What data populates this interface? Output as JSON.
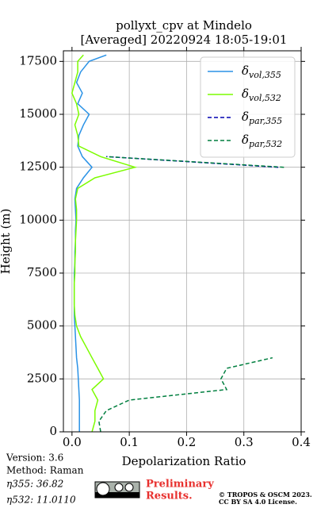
{
  "chart_data": {
    "type": "line",
    "title": [
      "pollyxt_cpv at Mindelo",
      "[Averaged] 20220924 18:05-19:01"
    ],
    "xlabel": "Depolarization Ratio",
    "ylabel": "Height (m)",
    "y": [
      0,
      500,
      1000,
      1500,
      2000,
      2500,
      3000,
      3500,
      4000,
      4500,
      5000,
      5500,
      6000,
      6500,
      7000,
      7500,
      8000,
      8500,
      9000,
      9500,
      10000,
      10500,
      11000,
      11500,
      12000,
      12500,
      13000,
      13500,
      14000,
      14500,
      15000,
      15500,
      16000,
      16500,
      17000,
      17500,
      17800
    ],
    "xlim": [
      -0.015,
      0.4
    ],
    "ylim": [
      0,
      18000
    ],
    "xticks": [
      {
        "value": 0,
        "label": "0.0"
      },
      0.1,
      0.2,
      0.3,
      0.4
    ],
    "yticks": [
      0,
      2500,
      5000,
      7500,
      10000,
      12500,
      15000,
      17500
    ],
    "grid": true,
    "legend": "upper right",
    "series": [
      {
        "name": {
          "symbol": "δ",
          "subscript": "vol,355"
        },
        "color": "#2a92e6",
        "dash": "solid",
        "values": [
          0.013,
          0.013,
          0.013,
          0.013,
          0.012,
          0.011,
          0.01,
          0.008,
          0.007,
          0.006,
          0.005,
          0.004,
          0.004,
          0.004,
          0.004,
          0.004,
          0.005,
          0.005,
          0.006,
          0.006,
          0.007,
          0.006,
          0.005,
          0.008,
          0.02,
          0.035,
          0.018,
          0.01,
          0.012,
          0.02,
          0.03,
          0.01,
          0.018,
          0.008,
          0.015,
          0.03,
          0.06
        ]
      },
      {
        "name": {
          "symbol": "δ",
          "subscript": "vol,532"
        },
        "color": "#7cfc00",
        "dash": "solid",
        "values": [
          0.035,
          0.04,
          0.04,
          0.045,
          0.035,
          0.055,
          0.045,
          0.035,
          0.025,
          0.015,
          0.008,
          0.005,
          0.004,
          0.004,
          0.004,
          0.005,
          0.005,
          0.006,
          0.006,
          0.007,
          0.008,
          0.008,
          0.006,
          0.01,
          0.04,
          0.11,
          0.05,
          0.012,
          0.01,
          0.005,
          0.012,
          0.008,
          0.0,
          0.005,
          0.01,
          0.01,
          0.02
        ]
      },
      {
        "name": {
          "symbol": "δ",
          "subscript": "par,355"
        },
        "color": "#0000b0",
        "dash": "dashed",
        "values": [
          null,
          null,
          null,
          null,
          null,
          null,
          null,
          null,
          null,
          null,
          null,
          null,
          null,
          null,
          null,
          null,
          null,
          null,
          null,
          null,
          null,
          null,
          null,
          null,
          null,
          0.36,
          0.06,
          null,
          null,
          null,
          null,
          null,
          null,
          null,
          null,
          null,
          null
        ]
      },
      {
        "name": {
          "symbol": "δ",
          "subscript": "par,532"
        },
        "color": "#007f3f",
        "dash": "dashed",
        "values": [
          0.05,
          0.047,
          0.06,
          0.1,
          0.27,
          0.26,
          0.27,
          0.35,
          null,
          null,
          null,
          null,
          null,
          null,
          null,
          null,
          null,
          null,
          null,
          null,
          null,
          null,
          null,
          null,
          null,
          0.37,
          0.06,
          null,
          null,
          null,
          null,
          null,
          null,
          null,
          null,
          null,
          null
        ]
      }
    ]
  },
  "footer": {
    "version": "Version: 3.6",
    "method": "Method: Raman",
    "eta355": "η355:  36.82",
    "eta532": "η532: 11.0110",
    "preliminary": [
      "Preliminary",
      "Results."
    ],
    "license": [
      "© TROPOS & OSCM 2023.",
      "CC BY SA 4.0 License."
    ]
  }
}
